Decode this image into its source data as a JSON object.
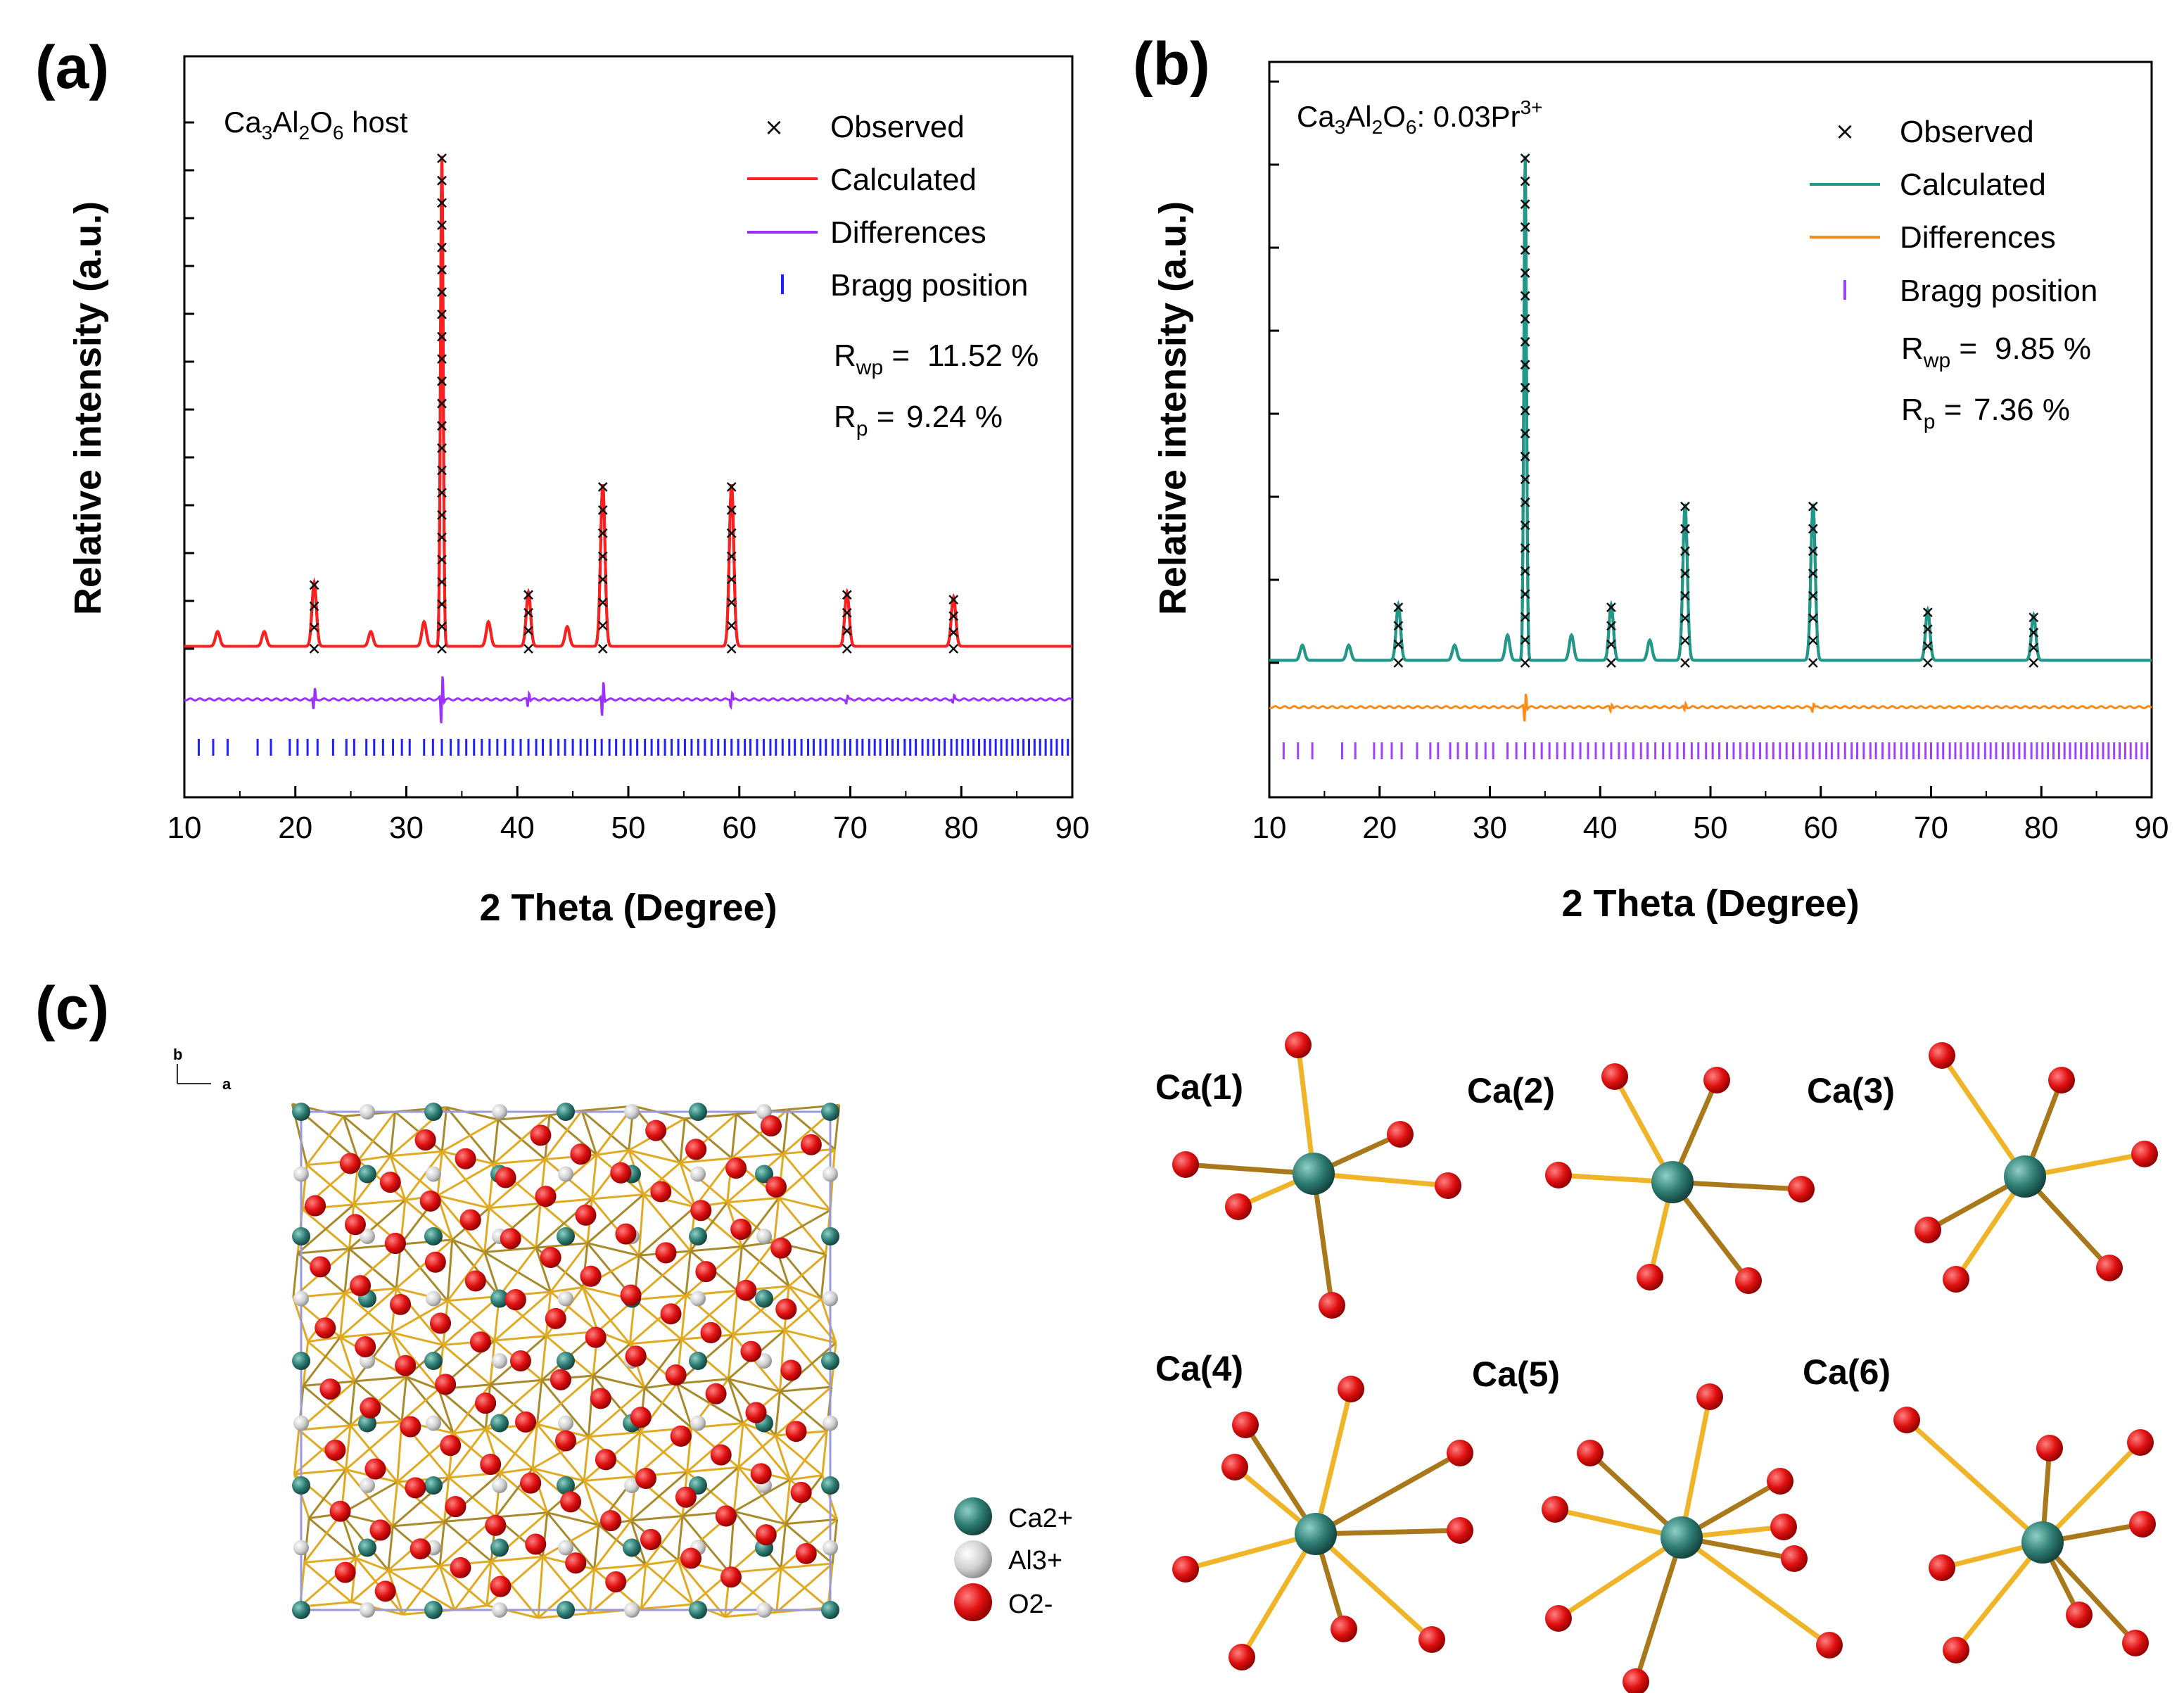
{
  "panels": {
    "a": "(a)",
    "b": "(b)",
    "c": "(c)"
  },
  "chart_data": [
    {
      "type": "line",
      "panel": "(a)",
      "sample_label": "Ca3Al2O6 host",
      "xlabel": "2 Theta (Degree)",
      "ylabel": "Relative intensity (a.u.)",
      "xlim": [
        10,
        90
      ],
      "xticks": [
        "10",
        "20",
        "30",
        "40",
        "50",
        "60",
        "70",
        "80",
        "90"
      ],
      "legend": [
        "Observed",
        "Calculated",
        "Differences",
        "Bragg position"
      ],
      "rwp": "11.52 %",
      "rp": "9.24 %",
      "colors": {
        "observed": "#111111",
        "calculated": "#ff1f1f",
        "differences": "#9b30ff",
        "bragg": "#1f1fff"
      },
      "peaks": [
        {
          "x": 13.0,
          "y": 0.03
        },
        {
          "x": 17.2,
          "y": 0.03
        },
        {
          "x": 21.7,
          "y": 0.13
        },
        {
          "x": 26.8,
          "y": 0.03
        },
        {
          "x": 31.6,
          "y": 0.05
        },
        {
          "x": 33.2,
          "y": 1.0
        },
        {
          "x": 37.4,
          "y": 0.05
        },
        {
          "x": 41.0,
          "y": 0.11
        },
        {
          "x": 44.5,
          "y": 0.04
        },
        {
          "x": 47.7,
          "y": 0.33
        },
        {
          "x": 59.3,
          "y": 0.33
        },
        {
          "x": 69.7,
          "y": 0.11
        },
        {
          "x": 79.3,
          "y": 0.1
        }
      ],
      "diff_spikes": [
        {
          "x": 21.7,
          "a": 0.03
        },
        {
          "x": 33.2,
          "a": 0.07
        },
        {
          "x": 41.0,
          "a": 0.02
        },
        {
          "x": 47.7,
          "a": 0.05
        },
        {
          "x": 59.3,
          "a": 0.02
        },
        {
          "x": 69.7,
          "a": 0.01
        },
        {
          "x": 79.3,
          "a": 0.01
        }
      ]
    },
    {
      "type": "line",
      "panel": "(b)",
      "sample_label": "Ca3Al2O6: 0.03Pr3+",
      "xlabel": "2 Theta (Degree)",
      "ylabel": "Relative intensity (a.u.)",
      "xlim": [
        10,
        90
      ],
      "xticks": [
        "10",
        "20",
        "30",
        "40",
        "50",
        "60",
        "70",
        "80",
        "90"
      ],
      "legend": [
        "Observed",
        "Calculated",
        "Differences",
        "Bragg position"
      ],
      "rwp": "9.85 %",
      "rp": "7.36 %",
      "colors": {
        "observed": "#111111",
        "calculated": "#1f9a8a",
        "differences": "#ff8a1a",
        "bragg": "#a040ff"
      },
      "peaks": [
        {
          "x": 13.0,
          "y": 0.03
        },
        {
          "x": 17.2,
          "y": 0.03
        },
        {
          "x": 21.7,
          "y": 0.11
        },
        {
          "x": 26.8,
          "y": 0.03
        },
        {
          "x": 31.6,
          "y": 0.05
        },
        {
          "x": 33.2,
          "y": 1.0
        },
        {
          "x": 37.4,
          "y": 0.05
        },
        {
          "x": 41.0,
          "y": 0.11
        },
        {
          "x": 44.5,
          "y": 0.04
        },
        {
          "x": 47.7,
          "y": 0.31
        },
        {
          "x": 59.3,
          "y": 0.31
        },
        {
          "x": 69.7,
          "y": 0.1
        },
        {
          "x": 79.3,
          "y": 0.09
        }
      ],
      "diff_spikes": [
        {
          "x": 33.2,
          "a": 0.04
        },
        {
          "x": 41.0,
          "a": 0.01
        },
        {
          "x": 47.7,
          "a": 0.01
        },
        {
          "x": 59.3,
          "a": 0.01
        }
      ]
    }
  ],
  "structure": {
    "axis_b": "b",
    "axis_a": "a",
    "legend": [
      {
        "label": "Ca2+",
        "color": "#2e7d74"
      },
      {
        "label": "Al3+",
        "color": "#d6d6d6"
      },
      {
        "label": "O2-",
        "color": "#e01010"
      }
    ],
    "sites": [
      "Ca(1)",
      "Ca(2)",
      "Ca(3)",
      "Ca(4)",
      "Ca(5)",
      "Ca(6)"
    ]
  }
}
